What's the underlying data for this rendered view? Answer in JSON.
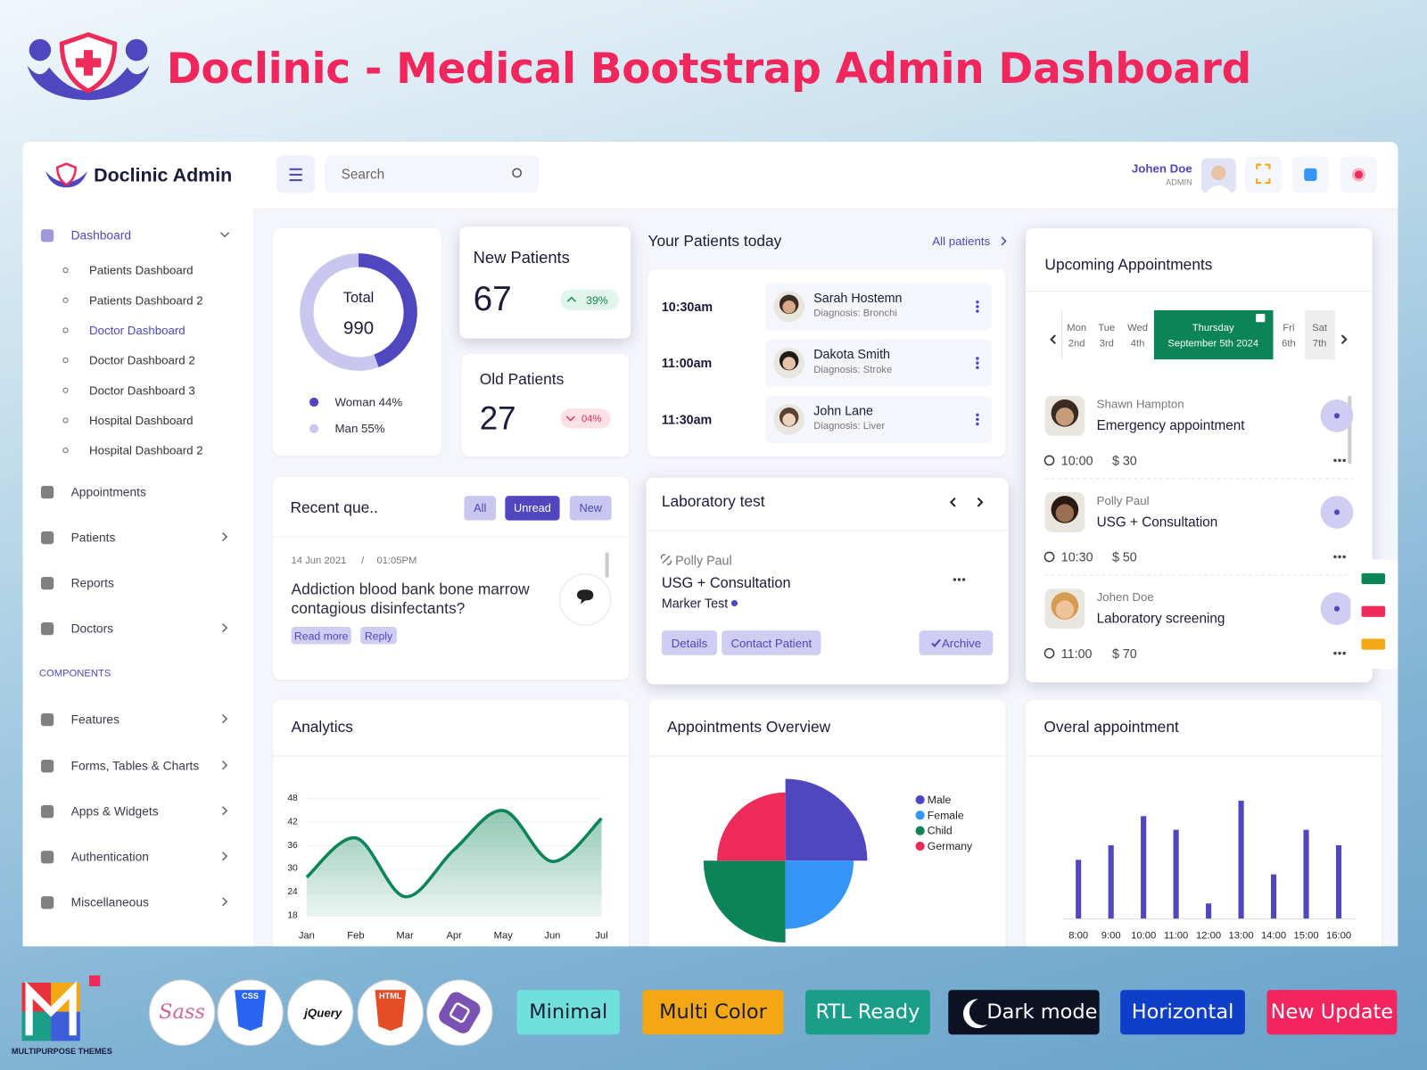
{
  "banner": {
    "title": "Doclinic - Medical Bootstrap Admin Dashboard"
  },
  "sidebar": {
    "brand": "Doclinic Admin",
    "menu": [
      "Dashboard",
      "Appointments",
      "Patients",
      "Reports",
      "Doctors"
    ],
    "dashboard_items": [
      "Patients Dashboard",
      "Patients Dashboard 2",
      "Doctor Dashboard",
      "Doctor Dashboard 2",
      "Doctor Dashboard 3",
      "Hospital Dashboard",
      "Hospital Dashboard 2"
    ],
    "section": "COMPONENTS",
    "components": [
      "Features",
      "Forms, Tables & Charts",
      "Apps & Widgets",
      "Authentication",
      "Miscellaneous"
    ]
  },
  "topbar": {
    "search": "Search",
    "user": "Johen Doe",
    "role": "ADMIN"
  },
  "new_patients": {
    "title": "New Patients",
    "value": 67,
    "change": "39%"
  },
  "old_patients": {
    "title": "Old Patients",
    "value": 27,
    "change": "04%"
  },
  "patients_today": {
    "title": "Your Patients today",
    "link": "All patients",
    "rows": [
      {
        "time": "10:30am",
        "name": "Sarah Hostemn",
        "diagnosis": "Diagnosis: Bronchi"
      },
      {
        "time": "11:00am",
        "name": "Dakota Smith",
        "diagnosis": "Diagnosis: Stroke"
      },
      {
        "time": "11:30am",
        "name": "John Lane",
        "diagnosis": "Diagnosis: Liver"
      }
    ]
  },
  "upcoming": {
    "title": "Upcoming Appointments",
    "days": [
      {
        "day": "Mon",
        "date": "2nd"
      },
      {
        "day": "Tue",
        "date": "3rd"
      },
      {
        "day": "Wed",
        "date": "4th"
      },
      {
        "day": "Thursday",
        "date": "September 5th 2024"
      },
      {
        "day": "Fri",
        "date": "6th"
      },
      {
        "day": "Sat",
        "date": "7th"
      }
    ],
    "items": [
      {
        "name": "Shawn Hampton",
        "type": "Emergency appointment",
        "time": "10:00",
        "price": "$ 30"
      },
      {
        "name": "Polly Paul",
        "type": "USG + Consultation",
        "time": "10:30",
        "price": "$ 50"
      },
      {
        "name": "Johen Doe",
        "type": "Laboratory screening",
        "time": "11:00",
        "price": "$ 70"
      }
    ]
  },
  "recent": {
    "title": "Recent que..",
    "filters": [
      "All",
      "Unread",
      "New"
    ],
    "date": "14 Jun 2021",
    "separator": "/",
    "time": "01:05PM",
    "question": "Addiction blood bank bone marrow contagious disinfectants?",
    "actions": [
      "Read more",
      "Reply"
    ]
  },
  "lab": {
    "title": "Laboratory test",
    "name": "Polly Paul",
    "test": "USG + Consultation",
    "marker": "Marker Test",
    "actions": [
      "Details",
      "Contact Patient",
      "Archive"
    ]
  },
  "chart_data": [
    {
      "type": "donut",
      "total_label": "Total",
      "total_value": 990,
      "categories": [
        "Woman",
        "Man"
      ],
      "values": [
        44,
        55
      ],
      "value_labels": [
        "44%",
        "55%"
      ],
      "colors": [
        "#5046c0",
        "#c9c6f0"
      ]
    },
    {
      "type": "line",
      "title": "Analytics",
      "categories": [
        "Jan",
        "Feb",
        "Mar",
        "Apr",
        "May",
        "Jun",
        "Jul"
      ],
      "values": [
        28,
        38,
        23,
        35,
        45,
        32,
        43
      ],
      "ylim": [
        18,
        48
      ],
      "yticks": [
        18,
        24,
        30,
        36,
        42,
        48
      ],
      "color": "#0b8457",
      "grid": true
    },
    {
      "type": "polar",
      "title": "Appointments Overview",
      "categories": [
        "Male",
        "Female",
        "Child",
        "Germany"
      ],
      "values": [
        18,
        15,
        18,
        15
      ],
      "colors": [
        "#5046c0",
        "#3596f7",
        "#0b8457",
        "#ee2c5a"
      ]
    },
    {
      "type": "bar",
      "title": "Overal appointment",
      "categories": [
        "8:00",
        "9:00",
        "10:00",
        "11:00",
        "12:00",
        "13:00",
        "14:00",
        "15:00",
        "16:00"
      ],
      "values": [
        65,
        81,
        113,
        98,
        17,
        130,
        49,
        98,
        81
      ],
      "color": "#5046c0"
    }
  ],
  "footer": {
    "brand": "MULTIPURPOSE THEMES",
    "tech": [
      "Sass",
      "CSS",
      "jQuery",
      "HTML"
    ],
    "badges": [
      "Minimal",
      "Multi Color",
      "RTL Ready",
      "Dark mode",
      "Horizontal",
      "New Update"
    ]
  }
}
